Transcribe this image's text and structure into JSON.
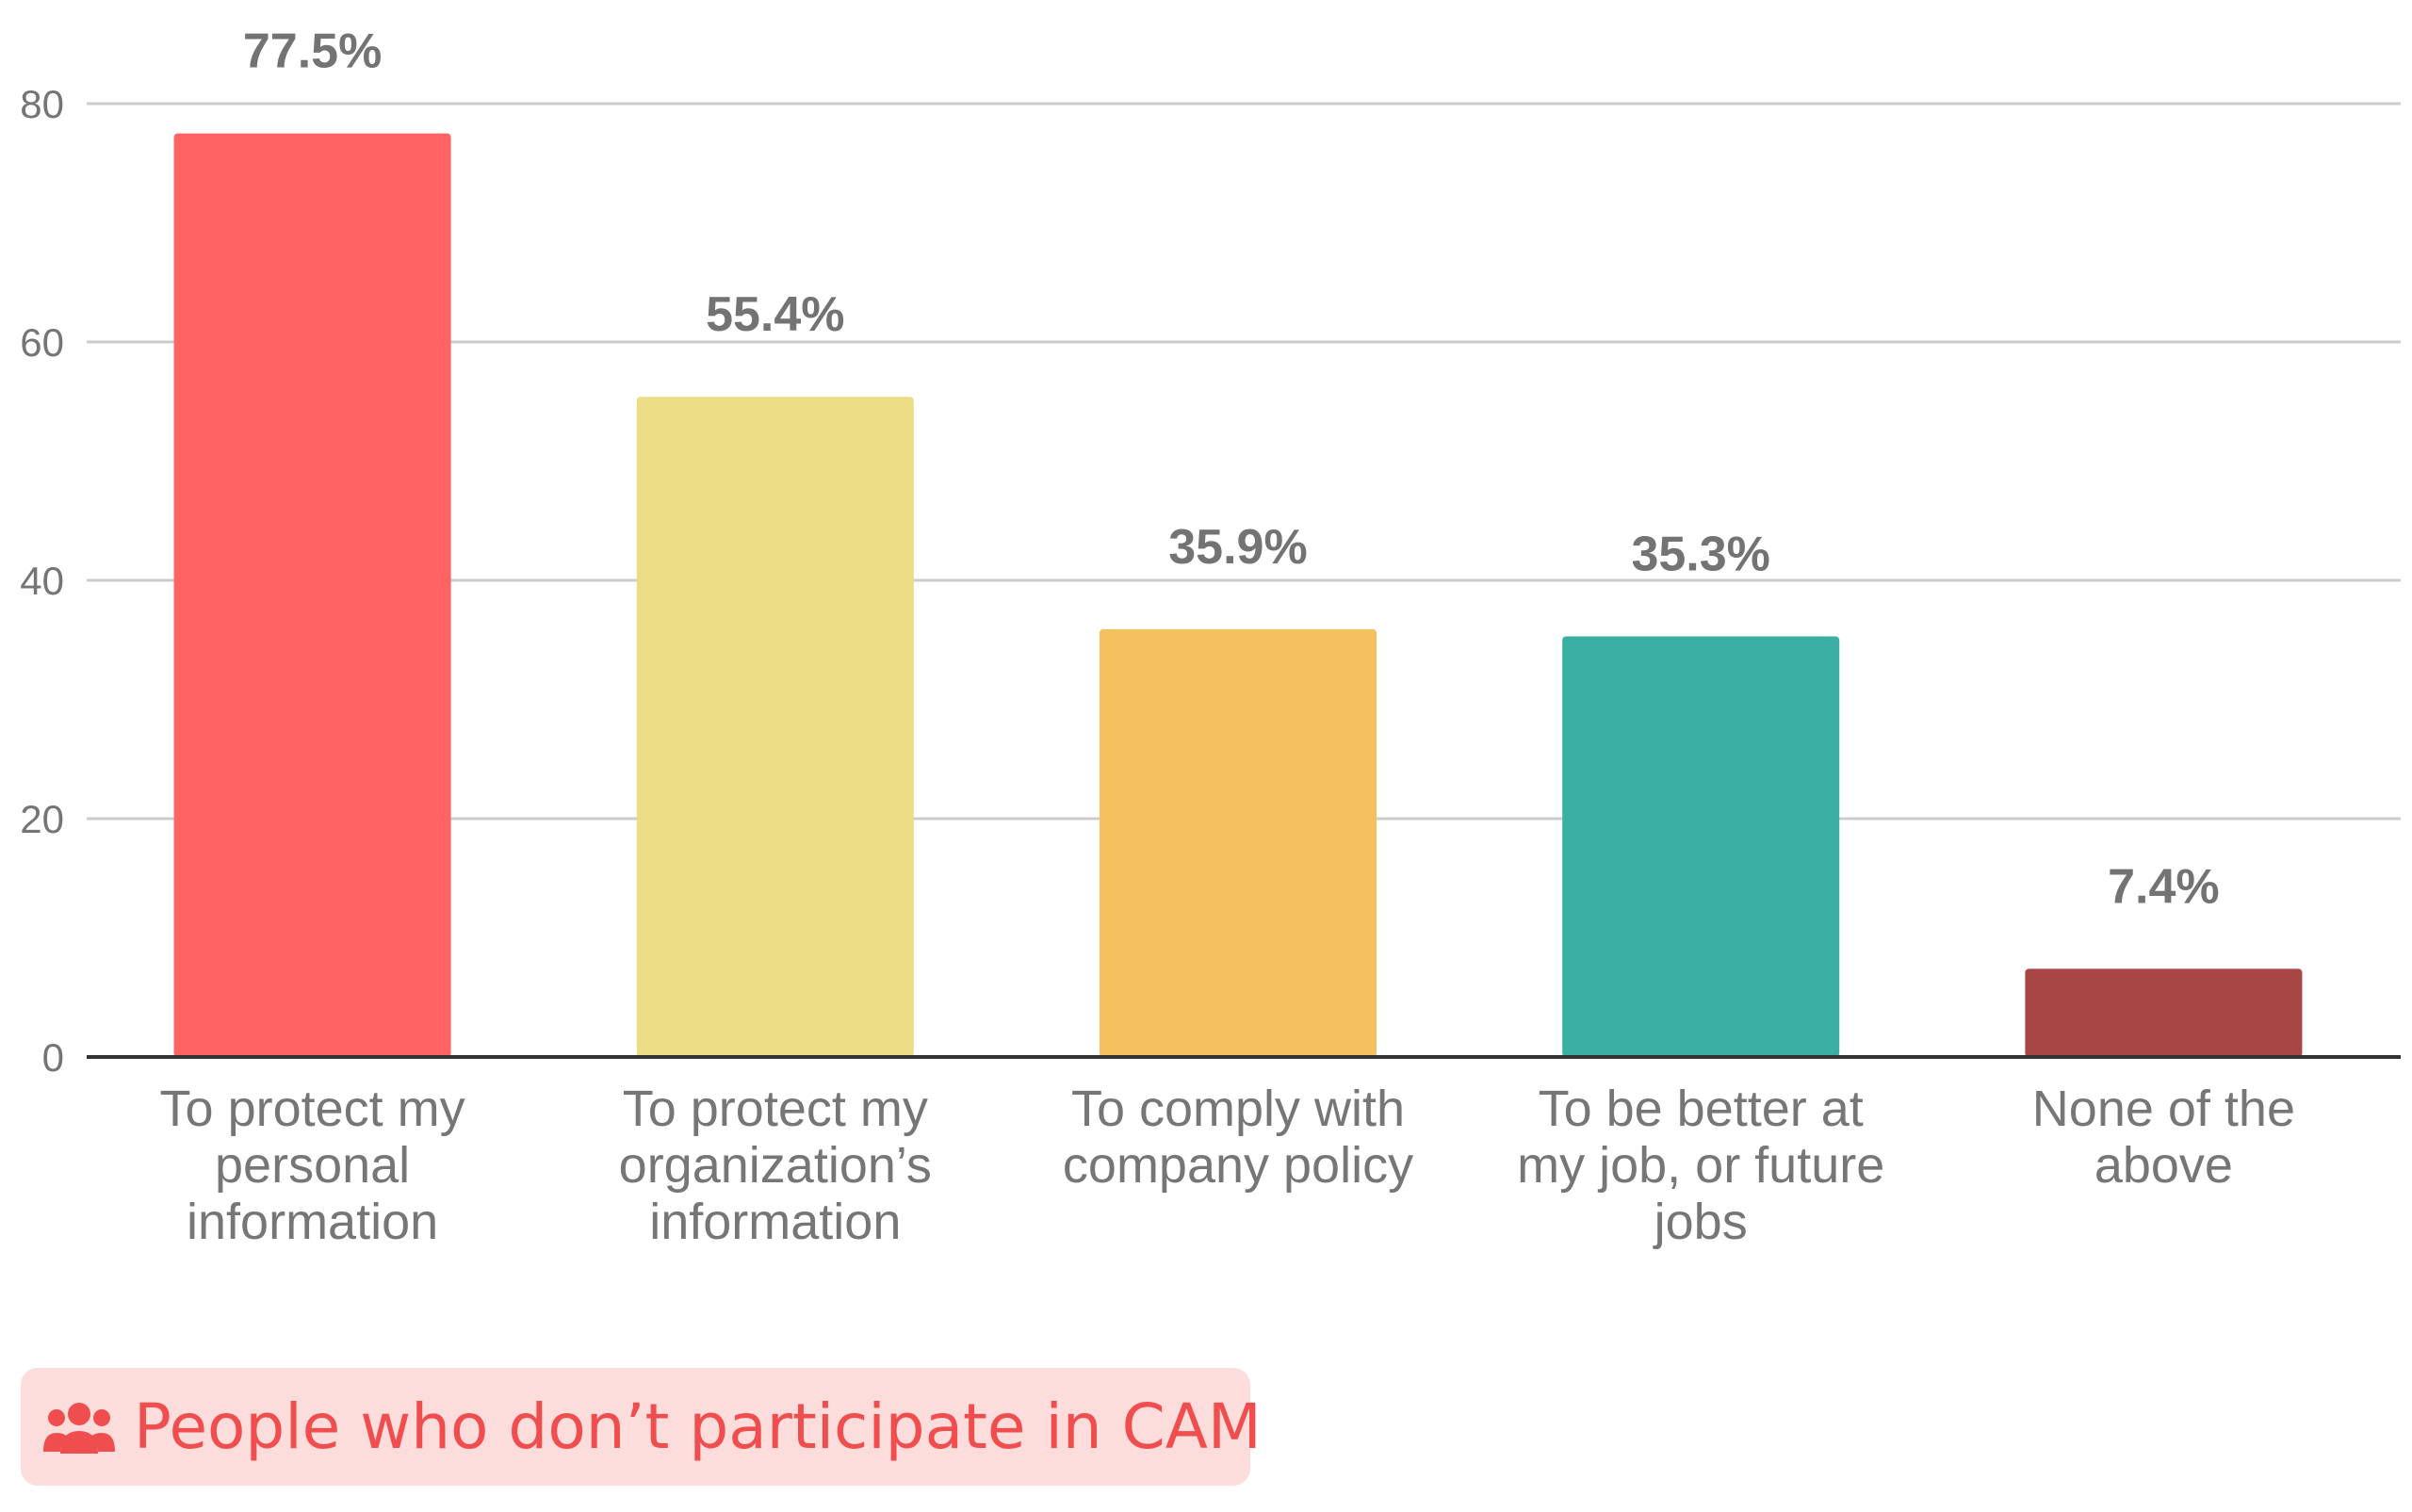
{
  "chart_data": {
    "type": "bar",
    "categories": [
      [
        "To protect my",
        "personal",
        "information"
      ],
      [
        "To protect my",
        "organization’s",
        "information"
      ],
      [
        "To comply with",
        "company policy"
      ],
      [
        "To be better at",
        "my job, or future",
        "jobs"
      ],
      [
        "None of the",
        "above"
      ]
    ],
    "values": [
      77.5,
      55.4,
      35.9,
      35.3,
      7.4
    ],
    "data_labels": [
      "77.5%",
      "55.4%",
      "35.9%",
      "35.3%",
      "7.4%"
    ],
    "colors": [
      "#ff6363",
      "#ecdc85",
      "#f4c15e",
      "#3ab0a5",
      "#a84545"
    ],
    "ylim": [
      0,
      80
    ],
    "yticks": [
      0,
      20,
      40,
      60,
      80
    ],
    "grid": true,
    "title": "",
    "xlabel": "",
    "ylabel": ""
  },
  "legend": {
    "icon": "people-group-icon",
    "label": "People who don’t participate in CAM",
    "background": "#fddcdc",
    "text_color": "#f04e4e"
  }
}
